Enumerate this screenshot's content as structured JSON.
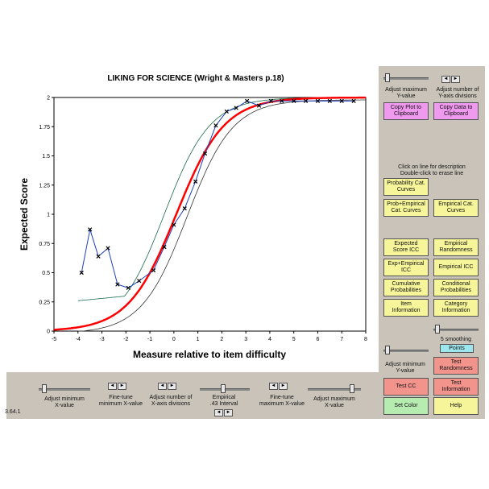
{
  "chart_data": {
    "type": "line",
    "title": "LIKING FOR SCIENCE (Wright & Masters p.18)",
    "xlabel": "Measure relative to item difficulty",
    "ylabel": "Expected Score",
    "xlim": [
      -5,
      8
    ],
    "ylim": [
      0,
      2
    ],
    "x_ticks": [
      "-5",
      "-4",
      "-3",
      "-2",
      "-1",
      "0",
      "1",
      "2",
      "3",
      "4",
      "5",
      "6",
      "7",
      "8"
    ],
    "y_ticks": [
      "0",
      "0.25",
      "0.5",
      "0.75",
      "1",
      "1.25",
      "1.5",
      "1.75",
      "2"
    ],
    "series": [
      {
        "role": "model-icc",
        "color": "#ff0000"
      },
      {
        "role": "upper-confidence",
        "color": "#1a6b4a"
      },
      {
        "role": "lower-confidence",
        "color": "#333333"
      },
      {
        "role": "empirical",
        "color": "#1f3fbf",
        "x": [
          -3.85,
          -3.5,
          -3.15,
          -2.75,
          -2.35,
          -1.9,
          -1.45,
          -0.85,
          -0.4,
          0.0,
          0.45,
          0.9,
          1.3,
          1.75,
          2.2,
          2.6,
          3.05,
          3.55,
          4.05,
          4.5,
          5.0,
          5.5,
          6.0,
          6.5,
          7.0,
          7.5
        ],
        "y": [
          0.5,
          0.87,
          0.64,
          0.71,
          0.4,
          0.37,
          0.43,
          0.52,
          0.72,
          0.91,
          1.05,
          1.28,
          1.52,
          1.76,
          1.88,
          1.91,
          1.97,
          1.93,
          1.97,
          1.97,
          1.97,
          1.97,
          1.97,
          1.97,
          1.97,
          1.97
        ]
      }
    ]
  },
  "panel": {
    "adjust_max_y": "Adjust maximum\nY-value",
    "adjust_num_y": "Adjust number of\nY-axis divisions",
    "copy_plot": "Copy Plot to\nClipboard",
    "copy_data": "Copy Data to\nClipboard",
    "instructions": "Click on line for description\nDouble-click to erase line",
    "prob_cat": "Probability Cat.\nCurves",
    "prob_emp": "Prob+Empirical\nCat. Curves",
    "emp_cat": "Empirical Cat.\nCurves",
    "expected_icc": "Expected\nScore ICC",
    "emp_randomness": "Empirical\nRandomness",
    "exp_emp_icc": "Exp+Empirical\nICC",
    "emp_icc": "Empirical ICC",
    "cum_prob": "Cumulative\nProbabilities",
    "cond_prob": "Conditional\nProbabilities",
    "item_info": "Item\nInformation",
    "cat_info": "Category\nInformation",
    "smoothing": "5 smoothing",
    "points": "Points",
    "adjust_min_y": "Adjust minimum\nY-value",
    "test_randomness": "Test\nRandomness",
    "test_cc": "Test CC",
    "test_info": "Test\nInformation",
    "set_color": "Set Color",
    "help": "Help"
  },
  "bottom": {
    "adjust_min_x": "Adjust minimum\nX-value",
    "fine_min_x": "Fine-tune\nminimum X-value",
    "adjust_num_x": "Adjust number of\nX-axis divisions",
    "empirical": "Empirical\n.43 Interval",
    "fine_max_x": "Fine-tune\nmaximum X-value",
    "adjust_max_x": "Adjust maximum\nX-value"
  },
  "spin": {
    "left": "◄",
    "right": "►"
  },
  "version": "3.64.1"
}
